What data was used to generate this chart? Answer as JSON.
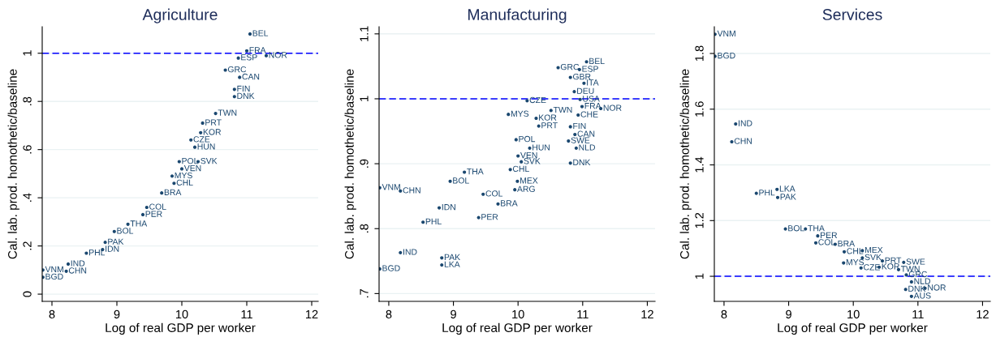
{
  "chart_data": [
    {
      "type": "scatter",
      "title": "Agriculture",
      "xlabel": "Log of real GDP per worker",
      "ylabel": "Cal. lab. prod. homothetic/baseline",
      "marker": "circle",
      "grid": "y",
      "xlim": [
        7.85,
        12.1
      ],
      "xticks": [
        8,
        9,
        10,
        11,
        12
      ],
      "ylim": [
        -0.03,
        1.11
      ],
      "yticks": [
        0,
        {
          "value": 0.2,
          "label": ".2"
        },
        {
          "value": 0.4,
          "label": ".4"
        },
        {
          "value": 0.6,
          "label": ".6"
        },
        {
          "value": 0.8,
          "label": ".8"
        },
        1
      ],
      "ref_lines": [
        {
          "axis": "y",
          "value": 1,
          "color": "#0000ff",
          "line_style": "dashed"
        }
      ],
      "series": [
        {
          "color": "#1a476f",
          "x": [
            11.05,
            10.52,
            10.32,
            10.29,
            10.14,
            10.2,
            9.96,
            10.25,
            10.0,
            9.85,
            9.88,
            9.69,
            9.46,
            9.4,
            9.17,
            8.96,
            8.82,
            8.78,
            8.53,
            8.25,
            8.22,
            7.86,
            7.86,
            11.0,
            10.87,
            11.3,
            10.67,
            10.89,
            10.81,
            10.81
          ],
          "values": [
            1.08,
            0.75,
            0.71,
            0.67,
            0.64,
            0.61,
            0.55,
            0.55,
            0.52,
            0.49,
            0.46,
            0.42,
            0.36,
            0.33,
            0.29,
            0.26,
            0.215,
            0.185,
            0.17,
            0.125,
            0.095,
            0.1,
            0.07,
            1.01,
            0.98,
            0.99,
            0.93,
            0.9,
            0.85,
            0.82
          ],
          "value_labels": [
            "BEL",
            "TWN",
            "PRT",
            "KOR",
            "CZE",
            "HUN",
            "POL",
            "SVK",
            "VEN",
            "MYS",
            "CHL",
            "BRA",
            "COL",
            "PER",
            "THA",
            "BOL",
            "PAK",
            "IDN",
            "PHL",
            "IND",
            "CHN",
            "VNM",
            "BGD",
            "FRA",
            "ESP",
            "NOR",
            "GRC",
            "CAN",
            "FIN",
            "DNK"
          ]
        }
      ]
    },
    {
      "type": "scatter",
      "title": "Manufacturing",
      "xlabel": "Log of real GDP per worker",
      "ylabel": "Cal. lab. prod. homothetic/baseline",
      "marker": "circle",
      "grid": "y",
      "xlim": [
        7.85,
        12.12
      ],
      "xticks": [
        8,
        9,
        10,
        11,
        12
      ],
      "ylim": [
        0.688,
        1.111
      ],
      "yticks": [
        {
          "value": 0.7,
          "label": ".7"
        },
        {
          "value": 0.8,
          "label": ".8"
        },
        {
          "value": 0.9,
          "label": ".9"
        },
        1,
        1.1
      ],
      "ref_lines": [
        {
          "axis": "y",
          "value": 1,
          "color": "#0000ff",
          "line_style": "dashed"
        }
      ],
      "series": [
        {
          "color": "#1a476f",
          "x": [
            11.06,
            10.62,
            10.81,
            10.95,
            11.02,
            10.87,
            10.96,
            10.14,
            10.99,
            11.28,
            9.85,
            10.51,
            10.93,
            10.28,
            10.32,
            10.81,
            10.88,
            10.78,
            10.9,
            9.97,
            10.18,
            10.0,
            10.05,
            9.88,
            10.81,
            9.17,
            8.95,
            9.99,
            9.95,
            7.86,
            8.18,
            9.46,
            9.69,
            8.78,
            9.39,
            8.53,
            8.18,
            8.82,
            8.82,
            7.86
          ],
          "values": [
            1.057,
            1.048,
            1.033,
            1.045,
            1.024,
            1.011,
            0.999,
            0.997,
            0.988,
            0.985,
            0.976,
            0.982,
            0.975,
            0.97,
            0.958,
            0.957,
            0.945,
            0.935,
            0.924,
            0.937,
            0.924,
            0.912,
            0.903,
            0.891,
            0.901,
            0.887,
            0.873,
            0.873,
            0.86,
            0.863,
            0.858,
            0.853,
            0.838,
            0.832,
            0.817,
            0.81,
            0.763,
            0.755,
            0.744,
            0.738
          ],
          "value_labels": [
            "BEL",
            "GRC",
            "GBR",
            "ESP",
            "ITA",
            "DEU",
            "USA",
            "CZE",
            "FRA",
            "NOR",
            "MYS",
            "TWN",
            "CHE",
            "KOR",
            "PRT",
            "FIN",
            "CAN",
            "SWE",
            "NLD",
            "POL",
            "HUN",
            "VEN",
            "SVK",
            "CHL",
            "DNK",
            "THA",
            "BOL",
            "MEX",
            "ARG",
            "VNM",
            "CHN",
            "COL",
            "BRA",
            "IDN",
            "PER",
            "PHL",
            "IND",
            "PAK",
            "LKA",
            "BGD"
          ]
        }
      ]
    },
    {
      "type": "scatter",
      "title": "Services",
      "xlabel": "Log of real GDP per worker",
      "ylabel": "Cal. lab. prod. homothetic/baseline",
      "marker": "circle",
      "grid": "y",
      "xlim": [
        7.85,
        12.12
      ],
      "xticks": [
        8,
        9,
        10,
        11,
        12
      ],
      "ylim": [
        0.91,
        1.896
      ],
      "yticks": [
        1,
        1.2,
        1.4,
        1.6,
        1.8
      ],
      "ref_lines": [
        {
          "axis": "y",
          "value": 1,
          "color": "#0000ff",
          "line_style": "dashed"
        }
      ],
      "series": [
        {
          "color": "#1a476f",
          "x": [
            7.86,
            7.86,
            8.18,
            8.12,
            8.5,
            8.82,
            8.83,
            8.95,
            9.26,
            9.45,
            9.42,
            9.72,
            9.86,
            10.14,
            10.14,
            9.85,
            10.45,
            10.12,
            10.4,
            10.7,
            10.78,
            10.82,
            10.9,
            10.81,
            11.11,
            10.9
          ],
          "values": [
            1.869,
            1.79,
            1.547,
            1.483,
            1.298,
            1.312,
            1.283,
            1.17,
            1.17,
            1.145,
            1.12,
            1.115,
            1.088,
            1.092,
            1.066,
            1.048,
            1.055,
            1.03,
            1.033,
            1.024,
            1.05,
            1.005,
            0.98,
            0.953,
            0.957,
            0.928
          ],
          "value_labels": [
            "VNM",
            "BGD",
            "IND",
            "CHN",
            "PHL",
            "LKA",
            "PAK",
            "BOL",
            "THA",
            "PER",
            "COL",
            "BRA",
            "CHL",
            "MEX",
            "SVK",
            "MYS",
            "PRT",
            "CZE",
            "KOR",
            "TWN",
            "SWE",
            "GRC",
            "NLD",
            "DNK",
            "NOR",
            "AUS"
          ]
        }
      ]
    }
  ]
}
